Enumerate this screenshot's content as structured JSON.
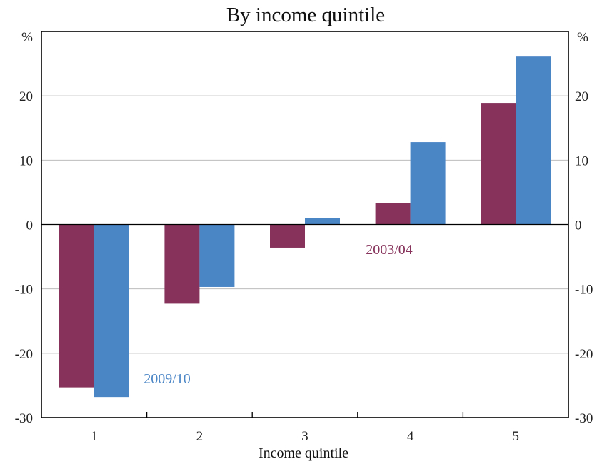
{
  "chart_data": {
    "type": "bar",
    "title": "By income quintile",
    "xlabel": "Income quintile",
    "ylabel_left": "%",
    "ylabel_right": "%",
    "categories": [
      "1",
      "2",
      "3",
      "4",
      "5"
    ],
    "ylim": [
      -30,
      30
    ],
    "yticks": [
      -30,
      -20,
      -10,
      0,
      10,
      20
    ],
    "grid": true,
    "series": [
      {
        "name": "2003/04",
        "color": "#86325A",
        "values": [
          -25.3,
          -12.3,
          -3.6,
          3.3,
          18.9
        ]
      },
      {
        "name": "2009/10",
        "color": "#4A85C6",
        "values": [
          -26.8,
          -9.7,
          1.0,
          12.8,
          26.1
        ]
      }
    ],
    "annotations": [
      {
        "text": "2003/04",
        "series": "2003/04"
      },
      {
        "text": "2009/10",
        "series": "2009/10"
      }
    ]
  }
}
